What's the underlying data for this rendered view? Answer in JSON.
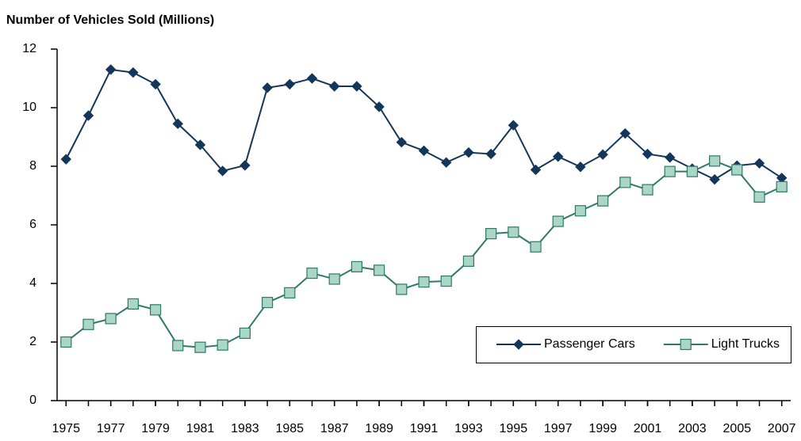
{
  "chart_data": {
    "type": "line",
    "title": "Number of Vehicles Sold (Millions)",
    "x": [
      1975,
      1976,
      1977,
      1978,
      1979,
      1980,
      1981,
      1982,
      1983,
      1984,
      1985,
      1986,
      1987,
      1988,
      1989,
      1990,
      1991,
      1992,
      1993,
      1994,
      1995,
      1996,
      1997,
      1998,
      1999,
      2000,
      2001,
      2002,
      2003,
      2004,
      2005,
      2006,
      2007
    ],
    "series": [
      {
        "name": "Passenger Cars",
        "color": "#14365a",
        "marker": "diamond",
        "marker_fill": "#14365a",
        "values": [
          8.24,
          9.73,
          11.3,
          11.2,
          10.8,
          9.45,
          8.73,
          7.84,
          8.03,
          10.68,
          10.8,
          11.0,
          10.73,
          10.73,
          10.03,
          8.82,
          8.53,
          8.13,
          8.47,
          8.42,
          9.4,
          7.88,
          8.33,
          7.98,
          8.4,
          9.12,
          8.42,
          8.3,
          7.92,
          7.55,
          8.02,
          8.1,
          7.6
        ]
      },
      {
        "name": "Light Trucks",
        "color": "#2e7a66",
        "marker": "square",
        "marker_fill": "#a9d6c5",
        "values": [
          2.0,
          2.6,
          2.8,
          3.3,
          3.1,
          1.88,
          1.82,
          1.9,
          2.3,
          3.35,
          3.68,
          4.35,
          4.15,
          4.57,
          4.45,
          3.8,
          4.05,
          4.08,
          4.76,
          5.7,
          5.75,
          5.25,
          6.12,
          6.48,
          6.82,
          7.45,
          7.2,
          7.82,
          7.82,
          8.18,
          7.88,
          6.95,
          7.3
        ]
      }
    ],
    "xlim": [
      1974.6,
      2007.4
    ],
    "xticks": [
      1975,
      1977,
      1979,
      1981,
      1983,
      1985,
      1987,
      1989,
      1991,
      1993,
      1995,
      1997,
      1999,
      2001,
      2003,
      2005,
      2007
    ],
    "ylim": [
      0,
      12
    ],
    "yticks": [
      0,
      2,
      4,
      6,
      8,
      10,
      12
    ],
    "grid": false,
    "legend": "lower right"
  }
}
